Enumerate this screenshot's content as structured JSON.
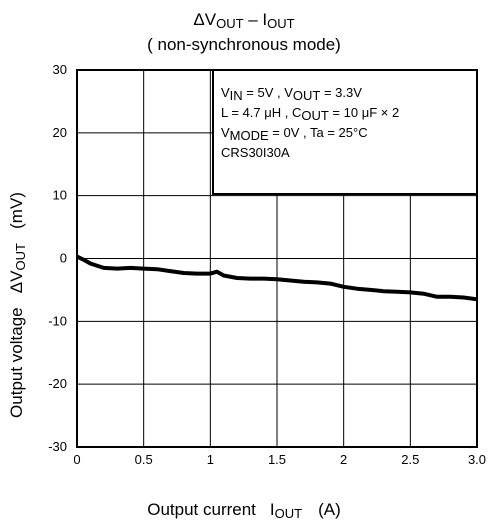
{
  "chart_data": {
    "type": "line",
    "title": {
      "delta": "ΔV",
      "out1": "OUT",
      "dash": " – I",
      "out2": "OUT"
    },
    "subtitle": "( non-synchronous mode)",
    "xlabel": {
      "text": "Output current",
      "sym": "I",
      "sub": "OUT",
      "unit": "(A)"
    },
    "ylabel": {
      "text": "Output voltage",
      "delta": "ΔV",
      "sub": "OUT",
      "unit": "(mV)"
    },
    "xlim": [
      0,
      3.0
    ],
    "ylim": [
      -30,
      30
    ],
    "x_ticks": [
      "0",
      "0.5",
      "1",
      "1.5",
      "2",
      "2.5",
      "3.0"
    ],
    "y_ticks": [
      "30",
      "20",
      "10",
      "0",
      "-10",
      "-20",
      "-30"
    ],
    "grid": true,
    "legend_position": "top-right",
    "conditions": {
      "line1": {
        "v": "V",
        "in": "IN",
        "t1": " = 5V , V",
        "out": "OUT",
        "t2": " = 3.3V"
      },
      "line2": {
        "t1": "L = 4.7 μH , C",
        "out": "OUT",
        "t2": " = 10 μF × 2"
      },
      "line3": {
        "v": "V",
        "mode": "MODE",
        "t1": " = 0V , Ta = 25°C"
      },
      "line4": "CRS30I30A"
    },
    "series": [
      {
        "x": [
          0.0,
          0.05,
          0.1,
          0.2,
          0.3,
          0.4,
          0.5,
          0.6,
          0.7,
          0.8,
          0.9,
          1.0,
          1.05,
          1.1,
          1.2,
          1.3,
          1.4,
          1.5,
          1.6,
          1.7,
          1.8,
          1.9,
          2.0,
          2.1,
          2.2,
          2.3,
          2.4,
          2.5,
          2.6,
          2.7,
          2.8,
          2.9,
          3.0
        ],
        "y": [
          0.3,
          -0.2,
          -0.8,
          -1.5,
          -1.6,
          -1.5,
          -1.6,
          -1.7,
          -2.0,
          -2.3,
          -2.4,
          -2.4,
          -2.1,
          -2.7,
          -3.1,
          -3.2,
          -3.2,
          -3.3,
          -3.5,
          -3.7,
          -3.8,
          -4.0,
          -4.5,
          -4.8,
          -5.0,
          -5.2,
          -5.3,
          -5.4,
          -5.6,
          -6.1,
          -6.1,
          -6.2,
          -6.5
        ],
        "color": "#000000"
      }
    ]
  }
}
